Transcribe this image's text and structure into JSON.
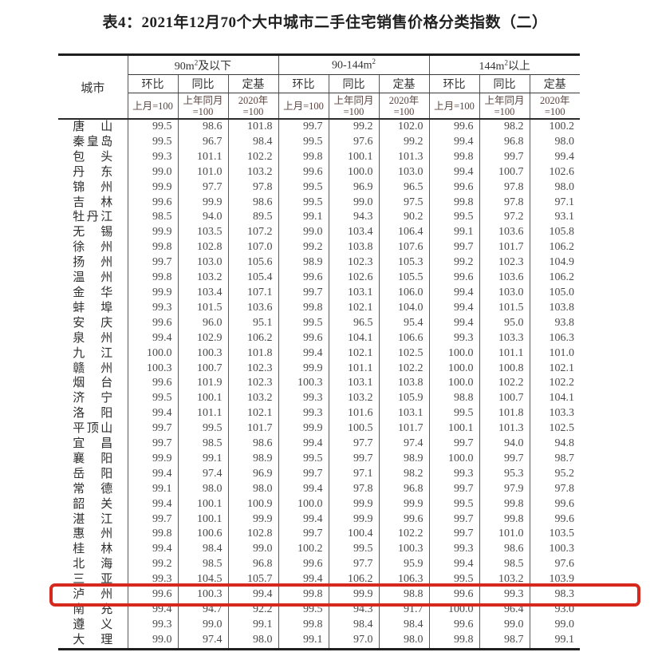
{
  "title": "表4：2021年12月70个大中城市二手住宅销售价格分类指数（二）",
  "highlight": {
    "color": "#d7281d",
    "city": "泸州"
  },
  "table": {
    "city_header": "城市",
    "groups": [
      {
        "pre": "90m",
        "sup": "2",
        "post": "及以下"
      },
      {
        "pre": "90-144m",
        "sup": "2",
        "post": ""
      },
      {
        "pre": "144m",
        "sup": "2",
        "post": "以上"
      }
    ],
    "metric_headers": [
      "环比",
      "同比",
      "定基"
    ],
    "base_headers": [
      [
        "上月=100",
        ""
      ],
      [
        "上年同月",
        "=100"
      ],
      [
        "2020年",
        "=100"
      ]
    ],
    "rows": [
      {
        "city": "唐山",
        "highlighted": false,
        "values": [
          "99.5",
          "98.6",
          "101.8",
          "99.7",
          "99.2",
          "102.0",
          "99.6",
          "98.2",
          "100.2"
        ]
      },
      {
        "city": "秦皇岛",
        "highlighted": false,
        "values": [
          "99.5",
          "96.7",
          "98.4",
          "99.5",
          "97.6",
          "99.2",
          "99.4",
          "96.8",
          "98.0"
        ]
      },
      {
        "city": "包头",
        "highlighted": false,
        "values": [
          "99.3",
          "101.1",
          "102.2",
          "99.8",
          "100.1",
          "101.3",
          "99.8",
          "99.7",
          "99.4"
        ]
      },
      {
        "city": "丹东",
        "highlighted": false,
        "values": [
          "99.0",
          "101.0",
          "103.2",
          "99.6",
          "100.0",
          "103.0",
          "99.4",
          "100.7",
          "102.6"
        ]
      },
      {
        "city": "锦州",
        "highlighted": false,
        "values": [
          "99.9",
          "97.7",
          "97.8",
          "99.5",
          "96.9",
          "96.5",
          "99.6",
          "97.8",
          "98.0"
        ]
      },
      {
        "city": "吉林",
        "highlighted": false,
        "values": [
          "99.6",
          "99.9",
          "98.6",
          "99.5",
          "99.0",
          "97.5",
          "99.8",
          "97.8",
          "97.1"
        ]
      },
      {
        "city": "牡丹江",
        "highlighted": false,
        "values": [
          "98.5",
          "94.0",
          "89.5",
          "99.1",
          "94.3",
          "90.2",
          "99.5",
          "97.2",
          "93.1"
        ]
      },
      {
        "city": "无锡",
        "highlighted": false,
        "values": [
          "99.9",
          "103.5",
          "107.2",
          "99.0",
          "103.4",
          "106.4",
          "99.1",
          "103.6",
          "105.8"
        ]
      },
      {
        "city": "徐州",
        "highlighted": false,
        "values": [
          "99.8",
          "102.8",
          "107.0",
          "99.2",
          "103.8",
          "107.6",
          "99.7",
          "101.7",
          "106.2"
        ]
      },
      {
        "city": "扬州",
        "highlighted": false,
        "values": [
          "99.7",
          "103.0",
          "105.6",
          "98.9",
          "102.3",
          "105.3",
          "99.2",
          "102.3",
          "104.9"
        ]
      },
      {
        "city": "温州",
        "highlighted": false,
        "values": [
          "99.8",
          "103.2",
          "105.4",
          "99.6",
          "102.6",
          "105.5",
          "99.6",
          "103.6",
          "106.2"
        ]
      },
      {
        "city": "金华",
        "highlighted": false,
        "values": [
          "99.9",
          "103.4",
          "107.1",
          "99.7",
          "103.1",
          "106.0",
          "99.4",
          "103.0",
          "105.0"
        ]
      },
      {
        "city": "蚌埠",
        "highlighted": false,
        "values": [
          "99.3",
          "101.5",
          "103.6",
          "99.8",
          "102.1",
          "104.0",
          "99.4",
          "101.5",
          "103.8"
        ]
      },
      {
        "city": "安庆",
        "highlighted": false,
        "values": [
          "99.6",
          "96.0",
          "95.1",
          "99.5",
          "96.5",
          "95.4",
          "99.4",
          "95.0",
          "93.8"
        ]
      },
      {
        "city": "泉州",
        "highlighted": false,
        "values": [
          "99.4",
          "102.9",
          "106.2",
          "99.6",
          "104.1",
          "106.6",
          "99.3",
          "103.3",
          "106.3"
        ]
      },
      {
        "city": "九江",
        "highlighted": false,
        "values": [
          "100.0",
          "100.3",
          "101.8",
          "99.4",
          "102.1",
          "102.5",
          "100.0",
          "101.1",
          "101.0"
        ]
      },
      {
        "city": "赣州",
        "highlighted": false,
        "values": [
          "100.3",
          "100.7",
          "102.3",
          "99.9",
          "101.1",
          "102.2",
          "100.0",
          "100.8",
          "102.1"
        ]
      },
      {
        "city": "烟台",
        "highlighted": false,
        "values": [
          "99.6",
          "101.9",
          "102.3",
          "100.3",
          "103.1",
          "103.8",
          "100.0",
          "102.2",
          "102.2"
        ]
      },
      {
        "city": "济宁",
        "highlighted": false,
        "values": [
          "99.5",
          "100.1",
          "103.2",
          "99.3",
          "103.2",
          "105.9",
          "98.8",
          "100.7",
          "104.1"
        ]
      },
      {
        "city": "洛阳",
        "highlighted": false,
        "values": [
          "99.4",
          "101.1",
          "102.1",
          "99.3",
          "101.6",
          "103.1",
          "99.5",
          "101.8",
          "103.3"
        ]
      },
      {
        "city": "平顶山",
        "highlighted": false,
        "values": [
          "99.7",
          "99.5",
          "101.7",
          "99.9",
          "100.5",
          "101.7",
          "100.1",
          "101.3",
          "102.5"
        ]
      },
      {
        "city": "宜昌",
        "highlighted": false,
        "values": [
          "99.7",
          "98.5",
          "98.6",
          "99.4",
          "97.7",
          "97.4",
          "99.7",
          "94.0",
          "94.8"
        ]
      },
      {
        "city": "襄阳",
        "highlighted": false,
        "values": [
          "99.9",
          "99.1",
          "98.9",
          "99.5",
          "99.7",
          "98.9",
          "100.0",
          "99.7",
          "98.7"
        ]
      },
      {
        "city": "岳阳",
        "highlighted": false,
        "values": [
          "99.4",
          "97.4",
          "96.9",
          "99.7",
          "97.1",
          "98.2",
          "99.3",
          "95.3",
          "95.2"
        ]
      },
      {
        "city": "常德",
        "highlighted": false,
        "values": [
          "99.1",
          "98.0",
          "98.0",
          "99.4",
          "97.8",
          "96.8",
          "99.7",
          "97.9",
          "97.8"
        ]
      },
      {
        "city": "韶关",
        "highlighted": false,
        "values": [
          "99.4",
          "100.1",
          "100.9",
          "100.0",
          "99.9",
          "99.9",
          "99.5",
          "99.8",
          "99.6"
        ]
      },
      {
        "city": "湛江",
        "highlighted": false,
        "values": [
          "99.7",
          "100.1",
          "99.9",
          "99.4",
          "99.9",
          "99.6",
          "99.7",
          "99.8",
          "99.6"
        ]
      },
      {
        "city": "惠州",
        "highlighted": false,
        "values": [
          "99.8",
          "100.6",
          "102.8",
          "99.7",
          "100.4",
          "102.2",
          "99.7",
          "101.0",
          "103.5"
        ]
      },
      {
        "city": "桂林",
        "highlighted": false,
        "values": [
          "99.4",
          "98.4",
          "99.0",
          "100.2",
          "99.5",
          "100.3",
          "99.3",
          "98.6",
          "100.3"
        ]
      },
      {
        "city": "北海",
        "highlighted": false,
        "values": [
          "99.2",
          "98.5",
          "96.8",
          "99.6",
          "97.7",
          "95.9",
          "99.4",
          "98.5",
          "97.6"
        ]
      },
      {
        "city": "三亚",
        "highlighted": false,
        "values": [
          "99.3",
          "104.5",
          "105.7",
          "99.4",
          "106.2",
          "106.3",
          "99.5",
          "103.2",
          "103.9"
        ]
      },
      {
        "city": "泸州",
        "highlighted": true,
        "values": [
          "99.6",
          "100.3",
          "99.4",
          "99.8",
          "99.9",
          "98.8",
          "99.6",
          "99.3",
          "98.3"
        ]
      },
      {
        "city": "南充",
        "highlighted": false,
        "values": [
          "99.4",
          "94.7",
          "92.2",
          "99.5",
          "94.3",
          "91.7",
          "100.0",
          "96.4",
          "93.0"
        ]
      },
      {
        "city": "遵义",
        "highlighted": false,
        "values": [
          "99.3",
          "99.0",
          "99.1",
          "99.8",
          "98.4",
          "98.4",
          "99.6",
          "99.0",
          "99.0"
        ]
      },
      {
        "city": "大理",
        "highlighted": false,
        "values": [
          "99.0",
          "97.4",
          "98.0",
          "99.1",
          "97.0",
          "98.0",
          "99.8",
          "98.7",
          "99.1"
        ]
      }
    ]
  }
}
